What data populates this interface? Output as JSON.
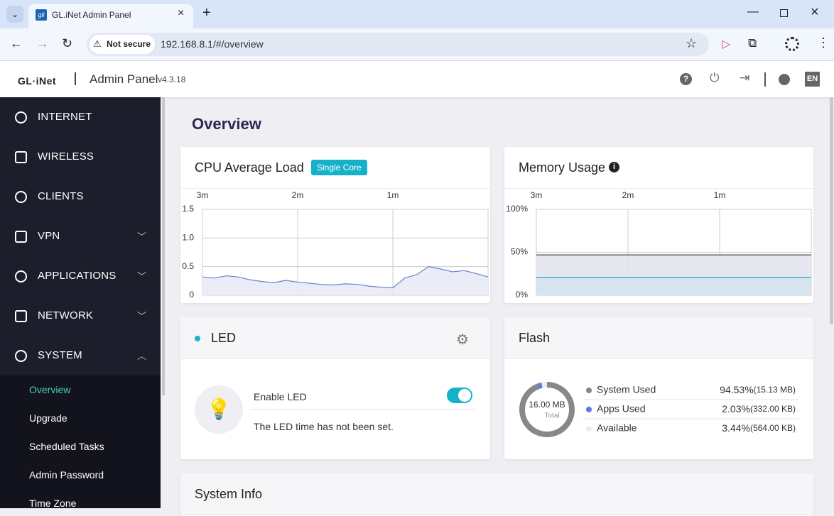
{
  "browser": {
    "tab_title": "GL.iNet Admin Panel",
    "tab_icon": "gli",
    "security": "Not secure",
    "url": "192.168.8.1/#/overview"
  },
  "header": {
    "brand": "GL·iNet",
    "title": "Admin Panel",
    "version": "v4.3.18",
    "language": "EN"
  },
  "sidebar": {
    "items": [
      "INTERNET",
      "WIRELESS",
      "CLIENTS",
      "VPN",
      "APPLICATIONS",
      "NETWORK",
      "SYSTEM"
    ],
    "subitems": [
      "Overview",
      "Upgrade",
      "Scheduled Tasks",
      "Admin Password",
      "Time Zone"
    ]
  },
  "page_title": "Overview",
  "cpu": {
    "title": "CPU Average Load",
    "badge": "Single Core",
    "type": "line",
    "x": [
      3,
      2.875,
      2.75,
      2.625,
      2.5,
      2.375,
      2.25,
      2.125,
      2,
      1.875,
      1.75,
      1.625,
      1.5,
      1.375,
      1.25,
      1.125,
      1,
      0.875,
      0.75,
      0.625,
      0.5,
      0.375,
      0.25,
      0.125,
      0
    ],
    "values": [
      0.32,
      0.3,
      0.34,
      0.32,
      0.27,
      0.24,
      0.22,
      0.26,
      0.23,
      0.21,
      0.19,
      0.18,
      0.2,
      0.19,
      0.16,
      0.14,
      0.13,
      0.3,
      0.36,
      0.5,
      0.46,
      0.41,
      0.43,
      0.38,
      0.32
    ],
    "color": "#6b7fc9",
    "xlim": [
      3,
      0
    ],
    "xticks": [
      {
        "value": 3,
        "label": "3m"
      },
      {
        "value": 2,
        "label": "2m"
      },
      {
        "value": 1,
        "label": "1m"
      }
    ],
    "ylim": [
      0,
      1.5
    ],
    "yticks": [
      0,
      0.5,
      {
        "value": 1,
        "label": "1.0"
      },
      1.5
    ],
    "grid": true
  },
  "memory": {
    "title": "Memory Usage",
    "type": "line",
    "x": [
      3,
      2.75,
      2.5,
      2.25,
      2,
      1.75,
      1.5,
      1.25,
      1,
      0.75,
      0.5,
      0.25,
      0
    ],
    "series": [
      {
        "color": "#4a4a5a",
        "fill": "#e4e4ee",
        "values": [
          47,
          47,
          47,
          47,
          47,
          47,
          47,
          47,
          47,
          47,
          47,
          47,
          47
        ]
      },
      {
        "color": "#3a9ec4",
        "fill": "#d3e3ee",
        "values": [
          21,
          21,
          21,
          21,
          21,
          21,
          21,
          21,
          21,
          21,
          21,
          21,
          21
        ]
      }
    ],
    "xlim": [
      3,
      0
    ],
    "xticks": [
      {
        "value": 3,
        "label": "3m"
      },
      {
        "value": 2,
        "label": "2m"
      },
      {
        "value": 1,
        "label": "1m"
      }
    ],
    "ylim": [
      0,
      100
    ],
    "yticks": [
      {
        "value": 0,
        "label": "0%"
      },
      {
        "value": 50,
        "label": "50%"
      },
      {
        "value": 100,
        "label": "100%"
      }
    ],
    "grid": true
  },
  "led": {
    "title": "LED",
    "label": "Enable LED",
    "enabled": true,
    "status": "The LED time has not been set."
  },
  "flash": {
    "title": "Flash",
    "type": "donut",
    "total": "16.00 MB",
    "total_label": "Total",
    "categories": [
      "System Used",
      "Apps Used",
      "Available"
    ],
    "values": [
      94.53,
      2.03,
      3.44
    ],
    "value_labels": [
      "94.53%",
      "2.03%",
      "3.44%"
    ],
    "sizes": [
      "(15.13 MB)",
      "(332.00 KB)",
      "(564.00 KB)"
    ],
    "colors": [
      "#888888",
      "#5b78e0",
      "#ececf0"
    ]
  },
  "system_info": {
    "title": "System Info"
  }
}
